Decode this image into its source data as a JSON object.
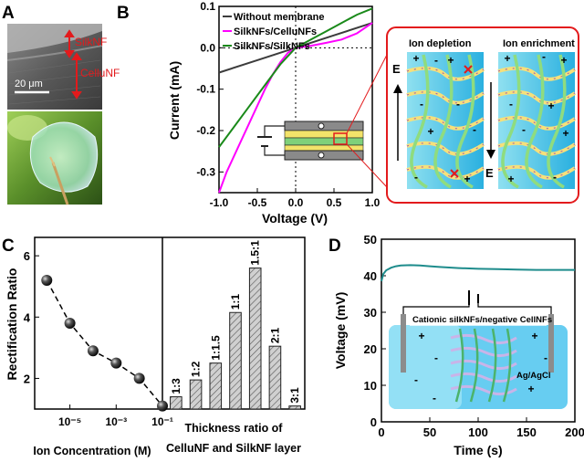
{
  "panels": {
    "A": {
      "letter": "A",
      "label_top": "SilkNF",
      "label_bottom": "CelluNF",
      "scale_bar": "20 μm",
      "colors": {
        "arrow": "#e31a1c"
      }
    },
    "B": {
      "letter": "B",
      "inset_depletion_title": "Ion depletion",
      "inset_enrichment_title": "Ion enrichment",
      "field_label": "E"
    },
    "C": {
      "letter": "C",
      "right_xlabel_line1": "Thickness ratio of",
      "right_xlabel_line2": "CelluNF and SilkNF layer"
    },
    "D": {
      "letter": "D",
      "inset_label": "Cationic silkNFs/negative CellNFs",
      "electrode_label": "Ag/AgCl"
    }
  },
  "chart_data": [
    {
      "panel": "B",
      "type": "line",
      "xlabel": "Voltage (V)",
      "ylabel": "Current (mA)",
      "xlim": [
        -1.0,
        1.0
      ],
      "ylim": [
        -0.35,
        0.1
      ],
      "xticks": [
        "-1.0",
        "-0.5",
        "0.0",
        "0.5",
        "1.0"
      ],
      "yticks": [
        "0.1",
        "0.0",
        "-0.1",
        "-0.2",
        "-0.3"
      ],
      "legend_position": "top-left",
      "series": [
        {
          "name": "Without membrane",
          "color": "#3c3c3c",
          "x": [
            -1.0,
            -0.5,
            0.0,
            0.5,
            1.0
          ],
          "y": [
            -0.06,
            -0.03,
            0.0,
            0.03,
            0.06
          ]
        },
        {
          "name": "SilkNFs/CelluNFs",
          "color": "#ff00ff",
          "x": [
            -1.0,
            -0.9,
            -0.8,
            -0.7,
            -0.6,
            -0.5,
            -0.4,
            -0.3,
            -0.2,
            -0.1,
            0.0,
            0.2,
            0.4,
            0.6,
            0.8,
            1.0
          ],
          "y": [
            -0.35,
            -0.3,
            -0.26,
            -0.22,
            -0.18,
            -0.14,
            -0.1,
            -0.065,
            -0.035,
            -0.012,
            0.0,
            0.005,
            0.012,
            0.02,
            0.035,
            0.06
          ]
        },
        {
          "name": "SilkNFs/SilkNFs",
          "color": "#1a8a1a",
          "x": [
            -1.0,
            -0.8,
            -0.6,
            -0.4,
            -0.2,
            0.0,
            0.2,
            0.4,
            0.6,
            0.8,
            1.0
          ],
          "y": [
            -0.24,
            -0.19,
            -0.14,
            -0.09,
            -0.04,
            0.0,
            0.02,
            0.04,
            0.06,
            0.08,
            0.095
          ]
        }
      ]
    },
    {
      "panel": "C-left",
      "type": "scatter",
      "xlabel": "Ion Concentration (M)",
      "ylabel": "Rectification Ratio",
      "xscale": "log",
      "xlim": [
        3e-07,
        0.1
      ],
      "ylim": [
        1,
        6.6
      ],
      "xticks": [
        "10⁻⁵",
        "10⁻³",
        "10⁻¹"
      ],
      "xtick_values": [
        1e-05,
        0.001,
        0.1
      ],
      "yticks": [
        "2",
        "4",
        "6"
      ],
      "ytick_values": [
        2,
        4,
        6
      ],
      "x": [
        1e-06,
        1e-05,
        0.0001,
        0.001,
        0.01,
        0.1
      ],
      "y": [
        5.2,
        3.8,
        2.9,
        2.5,
        2.0,
        1.1
      ]
    },
    {
      "panel": "C-right",
      "type": "bar",
      "categories": [
        "1:3",
        "1:2",
        "1:1.5",
        "1:1",
        "1.5:1",
        "2:1",
        "3:1"
      ],
      "values": [
        1.4,
        1.95,
        2.5,
        4.15,
        5.6,
        3.05,
        1.1
      ],
      "ylim": [
        1,
        6.6
      ]
    },
    {
      "panel": "D",
      "type": "line",
      "xlabel": "Time (s)",
      "ylabel": "Voltage (mV)",
      "xlim": [
        0,
        200
      ],
      "ylim": [
        0,
        50
      ],
      "xticks": [
        "0",
        "50",
        "100",
        "150",
        "200"
      ],
      "yticks": [
        "0",
        "10",
        "20",
        "30",
        "40",
        "50"
      ],
      "series": [
        {
          "color": "#1e8c8c",
          "x": [
            0,
            2,
            5,
            10,
            15,
            20,
            30,
            40,
            50,
            60,
            80,
            100,
            120,
            140,
            160,
            180,
            200
          ],
          "y": [
            38.5,
            40.5,
            41.5,
            42.2,
            42.6,
            42.8,
            42.9,
            42.8,
            42.6,
            42.4,
            42.1,
            41.9,
            41.8,
            41.7,
            41.6,
            41.6,
            41.6
          ]
        }
      ]
    }
  ]
}
